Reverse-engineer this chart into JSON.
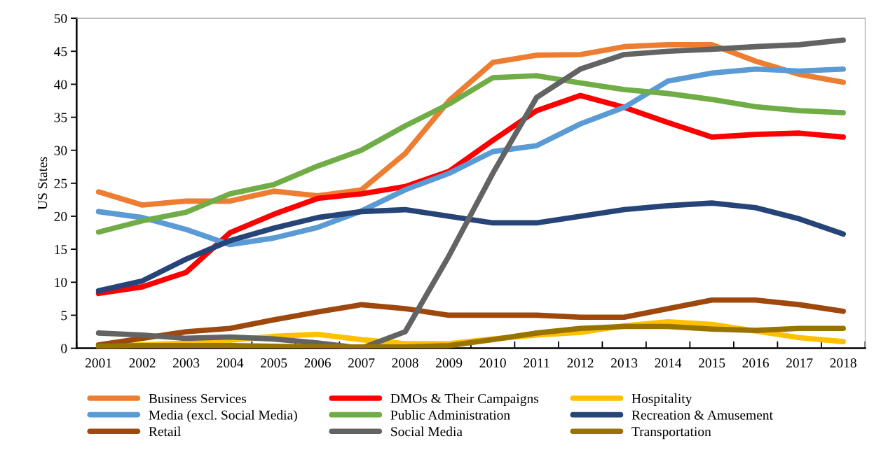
{
  "chart_data": {
    "type": "line",
    "ylabel": "US States",
    "categories": [
      "2001",
      "2002",
      "2003",
      "2004",
      "2005",
      "2006",
      "2007",
      "2008",
      "2009",
      "2010",
      "2011",
      "2012",
      "2013",
      "2014",
      "2015",
      "2016",
      "2017",
      "2018"
    ],
    "ylim": [
      0,
      50
    ],
    "yticks": [
      0,
      5,
      10,
      15,
      20,
      25,
      30,
      35,
      40,
      45,
      50
    ],
    "grid": false,
    "legend": "bottom",
    "marker": "none",
    "line_style": "solid",
    "series": [
      {
        "name": "Business Services",
        "color": "#ed7d31",
        "values": [
          23.7,
          21.7,
          22.3,
          22.3,
          23.8,
          23.1,
          24,
          29.5,
          37.5,
          43.3,
          44.4,
          44.5,
          45.7,
          46,
          46,
          43.5,
          41.5,
          40.3
        ]
      },
      {
        "name": "DMOs & Their Campaigns",
        "color": "#ff0000",
        "values": [
          8.3,
          9.3,
          11.5,
          17.5,
          20.3,
          22.7,
          23.4,
          24.5,
          26.8,
          31.5,
          36,
          38.3,
          36.5,
          34.2,
          32,
          32.4,
          32.6,
          32
        ]
      },
      {
        "name": "Hospitality",
        "color": "#ffc000",
        "values": [
          0.3,
          0.5,
          0.8,
          1.2,
          1.8,
          2.1,
          1.3,
          0.7,
          0.7,
          1.4,
          2,
          2.4,
          3.4,
          4,
          3.6,
          2.6,
          1.6,
          1.0
        ]
      },
      {
        "name": "Media (excl. Social Media)",
        "color": "#5b9bd5",
        "values": [
          20.7,
          19.8,
          18,
          15.7,
          16.7,
          18.3,
          20.8,
          24,
          26.5,
          29.8,
          30.7,
          34,
          36.5,
          40.5,
          41.7,
          42.3,
          42,
          42.3
        ]
      },
      {
        "name": "Public Administration",
        "color": "#70ad47",
        "values": [
          17.6,
          19.3,
          20.6,
          23.4,
          24.8,
          27.6,
          30,
          33.7,
          37,
          41,
          41.3,
          40.2,
          39.2,
          38.6,
          37.7,
          36.6,
          36,
          35.7
        ]
      },
      {
        "name": "Recreation & Amusement",
        "color": "#264478",
        "values": [
          8.7,
          10.2,
          13.5,
          16.3,
          18.2,
          19.8,
          20.7,
          21,
          20,
          19,
          19,
          20,
          21,
          21.6,
          22,
          21.3,
          19.6,
          17.3
        ]
      },
      {
        "name": "Retail",
        "color": "#9e480e",
        "values": [
          0.5,
          1.5,
          2.5,
          3,
          4.3,
          5.5,
          6.6,
          6,
          5,
          5,
          5,
          4.7,
          4.7,
          6,
          7.3,
          7.3,
          6.6,
          5.6
        ]
      },
      {
        "name": "Social Media",
        "color": "#636363",
        "values": [
          2.3,
          2,
          1.5,
          1.7,
          1.4,
          0.8,
          0,
          2.5,
          14,
          26.5,
          38,
          42.3,
          44.5,
          45,
          45.3,
          45.7,
          46,
          46.7
        ]
      },
      {
        "name": "Transportation",
        "color": "#997300",
        "values": [
          0.3,
          0.4,
          0.4,
          0.4,
          0.3,
          0.2,
          0.2,
          0.2,
          0.4,
          1.3,
          2.3,
          3,
          3.3,
          3.3,
          2.9,
          2.7,
          3,
          3
        ]
      }
    ]
  }
}
